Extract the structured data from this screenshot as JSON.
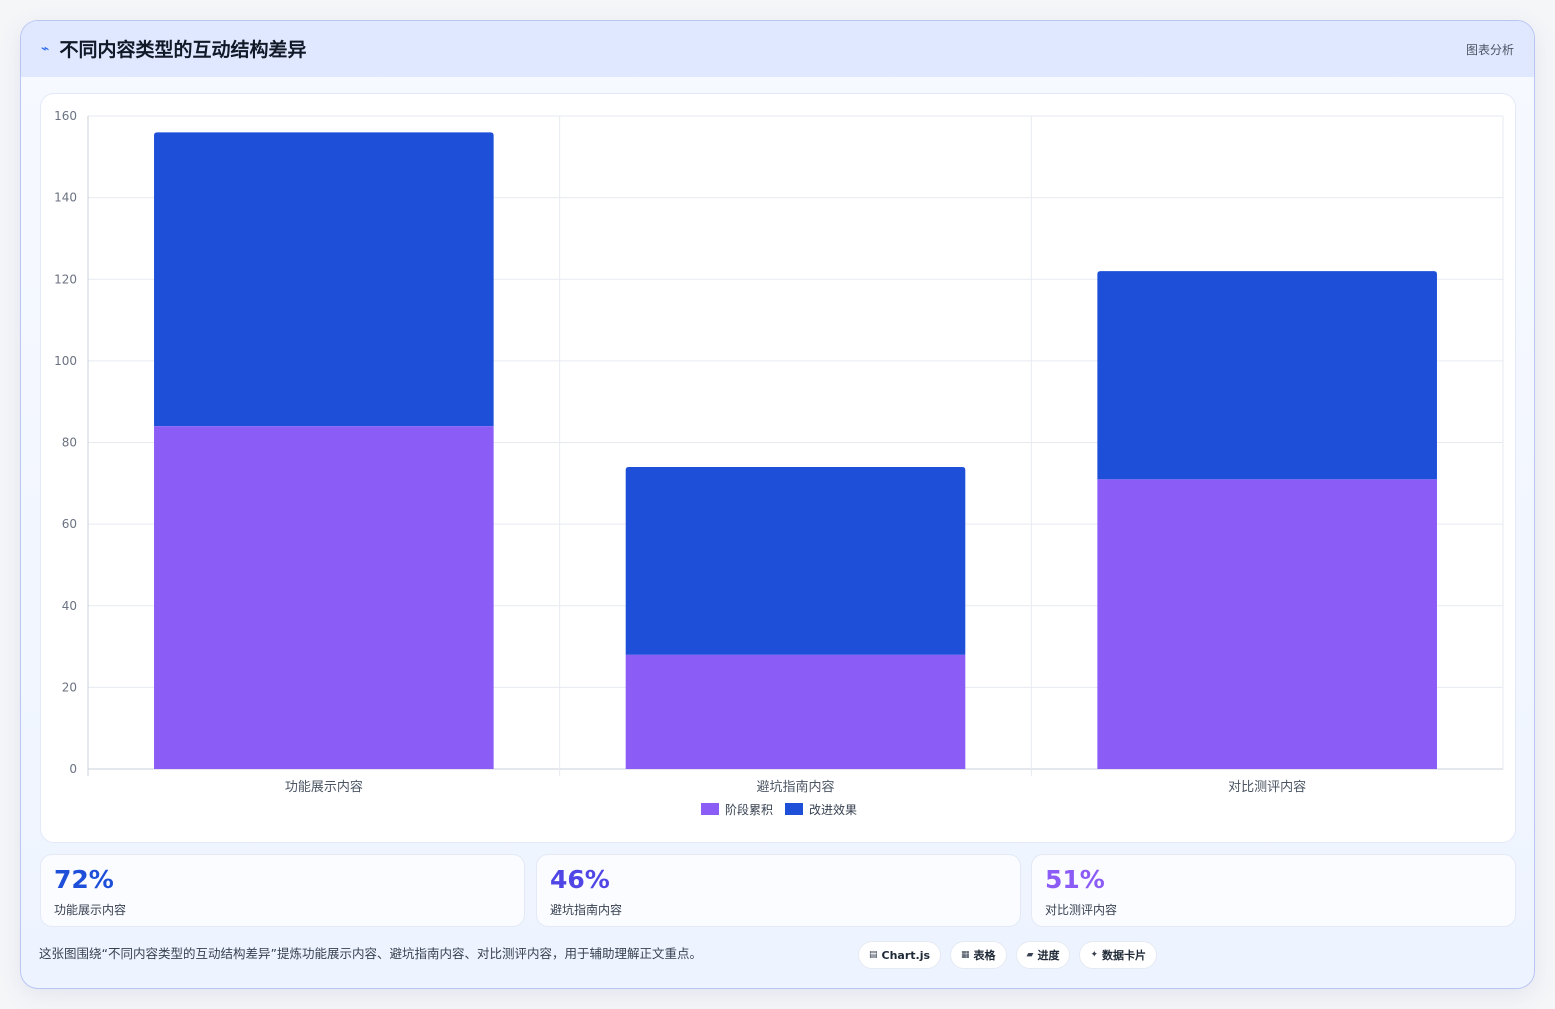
{
  "header": {
    "icon": "trend-line-icon",
    "title": "不同内容类型的互动结构差异",
    "tag": "图表分析"
  },
  "chart_data": {
    "type": "bar",
    "stacked": true,
    "categories": [
      "功能展示内容",
      "避坑指南内容",
      "对比测评内容"
    ],
    "series": [
      {
        "name": "阶段累积",
        "values": [
          84,
          28,
          71
        ],
        "color": "#8b5cf6"
      },
      {
        "name": "改进效果",
        "values": [
          72,
          46,
          51
        ],
        "color": "#1d4fd8"
      }
    ],
    "ylim": [
      0,
      160
    ],
    "yticks": [
      "0",
      "20",
      "40",
      "60",
      "80",
      "100",
      "120",
      "140",
      "160"
    ],
    "grid": true,
    "legend": "bottom"
  },
  "stats": [
    {
      "value": "72%",
      "label": "功能展示内容",
      "color": "#1d4fd8"
    },
    {
      "value": "46%",
      "label": "避坑指南内容",
      "color": "#4f46e5"
    },
    {
      "value": "51%",
      "label": "对比测评内容",
      "color": "#8b5cf6"
    }
  ],
  "footer": {
    "note": "这张图围绕“不同内容类型的互动结构差异”提炼功能展示内容、避坑指南内容、对比测评内容，用于辅助理解正文重点。",
    "chips": [
      {
        "icon": "chart-icon",
        "glyph": "▤",
        "label": "Chart.js"
      },
      {
        "icon": "table-icon",
        "glyph": "▦",
        "label": "表格"
      },
      {
        "icon": "progress-icon",
        "glyph": "▰",
        "label": "进度"
      },
      {
        "icon": "sparkle-icon",
        "glyph": "✦",
        "label": "数据卡片"
      }
    ]
  }
}
